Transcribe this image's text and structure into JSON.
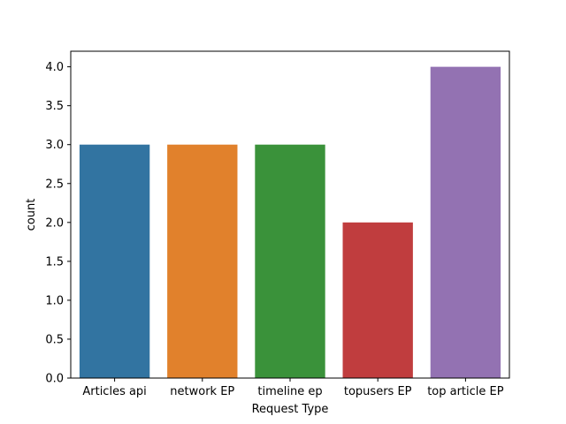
{
  "chart_data": {
    "type": "bar",
    "categories": [
      "Articles api",
      "network EP",
      "timeline ep",
      "topusers EP",
      "top article EP"
    ],
    "values": [
      3,
      3,
      3,
      2,
      4
    ],
    "colors": [
      "#3274a1",
      "#e1812c",
      "#3a923a",
      "#c03d3e",
      "#9372b2"
    ],
    "title": "",
    "xlabel": "Request Type",
    "ylabel": "count",
    "ylim": [
      0,
      4.2
    ],
    "yticks": [
      0,
      0.5,
      1,
      1.5,
      2,
      2.5,
      3,
      3.5,
      4
    ],
    "ytick_labels": [
      "0.0",
      "0.5",
      "1.0",
      "1.5",
      "2.0",
      "2.5",
      "3.0",
      "3.5",
      "4.0"
    ],
    "grid": false,
    "legend": "none"
  }
}
